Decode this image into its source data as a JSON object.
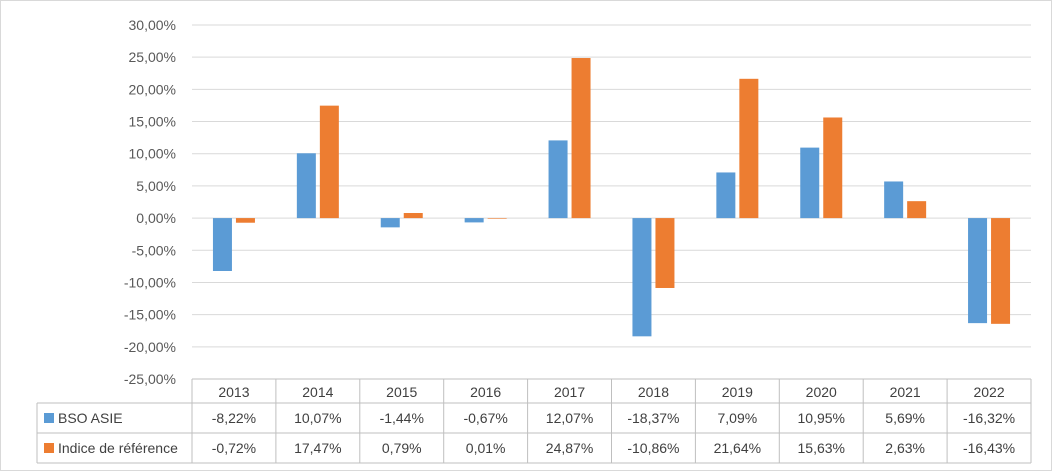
{
  "chart_data": {
    "type": "bar",
    "categories": [
      "2013",
      "2014",
      "2015",
      "2016",
      "2017",
      "2018",
      "2019",
      "2020",
      "2021",
      "2022"
    ],
    "series": [
      {
        "name": "BSO ASIE",
        "color": "#5b9bd5",
        "values": [
          -8.22,
          10.07,
          -1.44,
          -0.67,
          12.07,
          -18.37,
          7.09,
          10.95,
          5.69,
          -16.32
        ],
        "labels": [
          "-8,22%",
          "10,07%",
          "-1,44%",
          "-0,67%",
          "12,07%",
          "-18,37%",
          "7,09%",
          "10,95%",
          "5,69%",
          "-16,32%"
        ]
      },
      {
        "name": "Indice de référence",
        "color": "#ed7d31",
        "values": [
          -0.72,
          17.47,
          0.79,
          0.01,
          24.87,
          -10.86,
          21.64,
          15.63,
          2.63,
          -16.43
        ],
        "labels": [
          "-0,72%",
          "17,47%",
          "0,79%",
          "0,01%",
          "24,87%",
          "-10,86%",
          "21,64%",
          "15,63%",
          "2,63%",
          "-16,43%"
        ]
      }
    ],
    "ylim": [
      -25,
      30
    ],
    "y_ticks": [
      30,
      25,
      20,
      15,
      10,
      5,
      0,
      -5,
      -10,
      -15,
      -20,
      -25
    ],
    "y_tick_labels": [
      "30,00%",
      "25,00%",
      "20,00%",
      "15,00%",
      "10,00%",
      "5,00%",
      "0,00%",
      "-5,00%",
      "-10,00%",
      "-15,00%",
      "-20,00%",
      "-25,00%"
    ],
    "grid": true,
    "legend": "data table below chart",
    "title": "",
    "xlabel": "",
    "ylabel": ""
  }
}
